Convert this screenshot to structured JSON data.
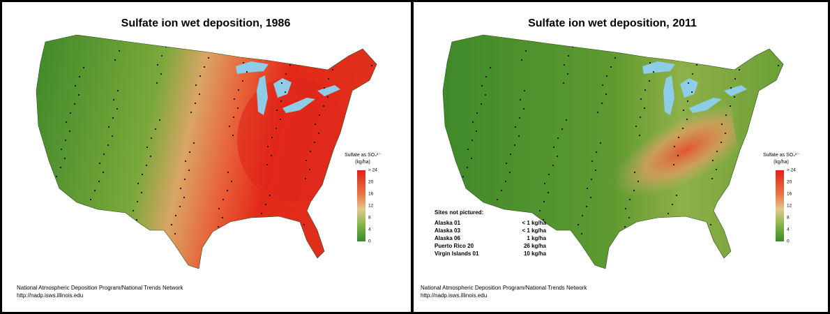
{
  "panels": [
    {
      "title": "Sulfate ion wet deposition, 1986",
      "legend": {
        "title": "Sulfate as SO₄²⁻",
        "unit": "(kg/ha)",
        "ticks": [
          "> 24",
          "20",
          "16",
          "12",
          "8",
          "4",
          "0"
        ]
      },
      "credit": [
        "National Atmospheric Deposition Program/National Trends Network",
        "http://nadp.isws.illinois.edu"
      ]
    },
    {
      "title": "Sulfate ion wet deposition, 2011",
      "legend": {
        "title": "Sulfate as SO₄²⁻",
        "unit": "(kg/ha)",
        "ticks": [
          "> 24",
          "20",
          "16",
          "12",
          "8",
          "4",
          "0"
        ]
      },
      "sites": {
        "title": "Sites not pictured:",
        "rows": [
          [
            "Alaska 01",
            "< 1 kg/ha"
          ],
          [
            "Alaska 03",
            "< 1 kg/ha"
          ],
          [
            "Alaska 06",
            "1 kg/ha"
          ],
          [
            "Puerto Rico 20",
            "26 kg/ha"
          ],
          [
            "Virgin Islands 01",
            "10 kg/ha"
          ]
        ]
      },
      "credit": [
        "National Atmospheric Deposition Program/National Trends Network",
        "http://nadp.isws.illinois.edu"
      ]
    }
  ]
}
